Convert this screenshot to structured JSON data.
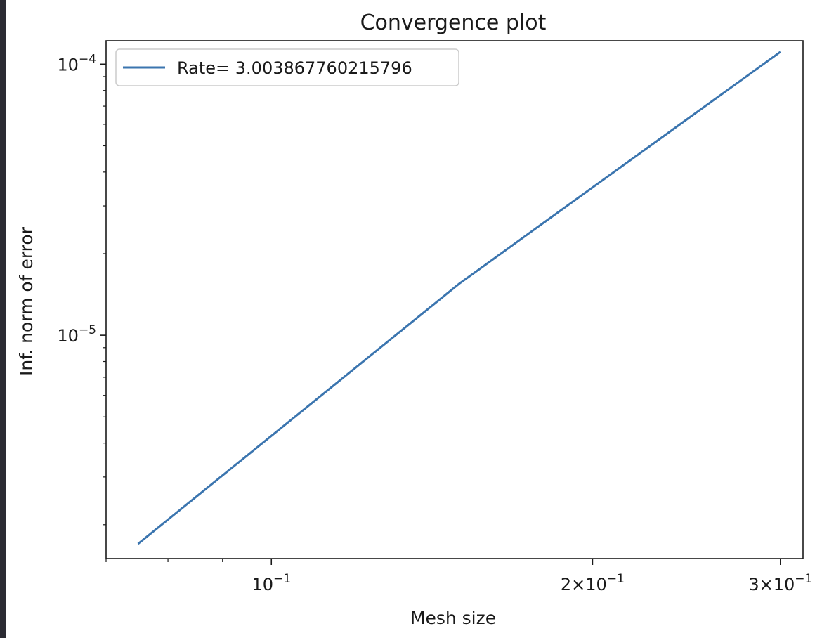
{
  "chart_data": {
    "type": "line",
    "title": "Convergence plot",
    "xlabel": "Mesh size",
    "ylabel": "Inf. norm of error",
    "xscale": "log",
    "yscale": "log",
    "xlim": [
      0.07,
      0.315
    ],
    "ylim": [
      1.5e-06,
      0.000122
    ],
    "grid": false,
    "legend_position": "top-left",
    "x_major_ticks": [
      {
        "value": 0.1,
        "mantissa": "",
        "exponent": "−1"
      },
      {
        "value": 0.2,
        "mantissa": "2",
        "exponent": "−1"
      },
      {
        "value": 0.3,
        "mantissa": "3",
        "exponent": "−1"
      }
    ],
    "x_minor_ticks": [
      0.07,
      0.08,
      0.09
    ],
    "y_major_ticks": [
      {
        "value": 0.0001,
        "exponent": "−4"
      },
      {
        "value": 1e-05,
        "exponent": "−5"
      }
    ],
    "y_minor_ticks": [
      2e-06,
      3e-06,
      4e-06,
      5e-06,
      6e-06,
      7e-06,
      8e-06,
      9e-06,
      2e-05,
      3e-05,
      4e-05,
      5e-05,
      6e-05,
      7e-05,
      8e-05,
      9e-05
    ],
    "series": [
      {
        "name": "Rate= 3.003867760215796",
        "color": "#3b75af",
        "x": [
          0.075,
          0.15,
          0.3
        ],
        "y": [
          1.7e-06,
          1.55e-05,
          0.000111
        ]
      }
    ]
  }
}
